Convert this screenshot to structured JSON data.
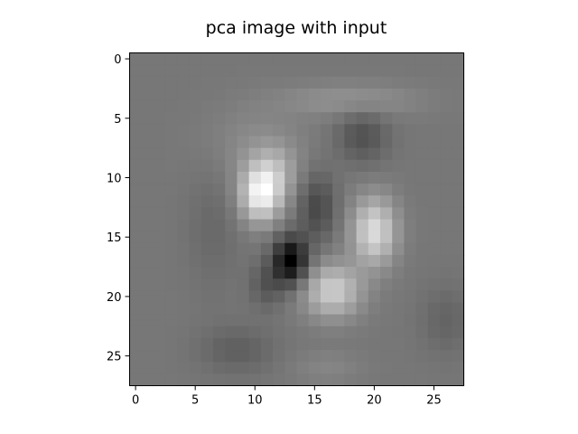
{
  "chart_data": {
    "type": "heatmap",
    "title": "pca image with input",
    "xlabel": "",
    "ylabel": "",
    "colormap": "gray",
    "grid": false,
    "xlim": [
      -0.5,
      27.5
    ],
    "ylim": [
      27.5,
      -0.5
    ],
    "x_ticks": [
      0,
      5,
      10,
      15,
      20,
      25
    ],
    "y_ticks": [
      0,
      5,
      10,
      15,
      20,
      25
    ],
    "x_tick_labels": [
      "0",
      "5",
      "10",
      "15",
      "20",
      "25"
    ],
    "y_tick_labels": [
      "0",
      "5",
      "10",
      "15",
      "20",
      "25"
    ],
    "rows": 28,
    "cols": 28,
    "value_range": [
      0,
      1
    ],
    "base_value": 0.5,
    "blobs": [
      {
        "row": 11.5,
        "col": 10.5,
        "sigma_row": 1.6,
        "sigma_col": 1.2,
        "amplitude": 0.48
      },
      {
        "row": 9.5,
        "col": 11.5,
        "sigma_row": 1.6,
        "sigma_col": 1.4,
        "amplitude": 0.2
      },
      {
        "row": 14.5,
        "col": 20.0,
        "sigma_row": 2.0,
        "sigma_col": 1.3,
        "amplitude": 0.42
      },
      {
        "row": 19.5,
        "col": 16.5,
        "sigma_row": 1.6,
        "sigma_col": 1.7,
        "amplitude": 0.36
      },
      {
        "row": 7.5,
        "col": 10.0,
        "sigma_row": 2.5,
        "sigma_col": 3.0,
        "amplitude": 0.08
      },
      {
        "row": 17.0,
        "col": 13.0,
        "sigma_row": 1.4,
        "sigma_col": 1.0,
        "amplitude": -0.5
      },
      {
        "row": 12.5,
        "col": 15.2,
        "sigma_row": 2.0,
        "sigma_col": 1.1,
        "amplitude": -0.2
      },
      {
        "row": 6.5,
        "col": 19.0,
        "sigma_row": 1.6,
        "sigma_col": 1.5,
        "amplitude": -0.16
      },
      {
        "row": 3.5,
        "col": 18.0,
        "sigma_row": 1.0,
        "sigma_col": 4.0,
        "amplitude": 0.12
      },
      {
        "row": 19.0,
        "col": 11.0,
        "sigma_row": 1.4,
        "sigma_col": 1.0,
        "amplitude": -0.14
      },
      {
        "row": 24.5,
        "col": 8.5,
        "sigma_row": 1.4,
        "sigma_col": 2.2,
        "amplitude": -0.1
      },
      {
        "row": 22.0,
        "col": 26.0,
        "sigma_row": 2.0,
        "sigma_col": 1.5,
        "amplitude": -0.08
      },
      {
        "row": 14.0,
        "col": 6.5,
        "sigma_row": 4.0,
        "sigma_col": 1.5,
        "amplitude": -0.06
      },
      {
        "row": 26.0,
        "col": 16.0,
        "sigma_row": 1.0,
        "sigma_col": 2.0,
        "amplitude": 0.06
      }
    ]
  }
}
